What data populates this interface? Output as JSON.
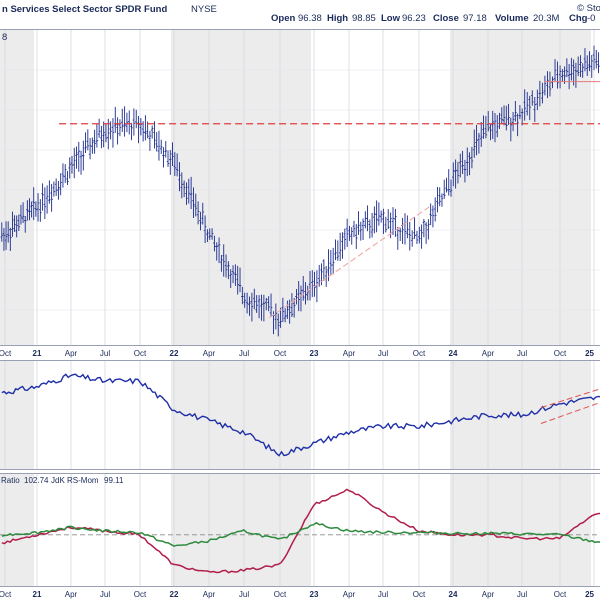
{
  "header": {
    "title": "n Services Select Sector SPDR Fund",
    "exchange": "NYSE",
    "open_label": "Open",
    "open": "96.38",
    "high_label": "High",
    "high": "98.85",
    "low_label": "Low",
    "low": "96.23",
    "close_label": "Close",
    "close": "97.18",
    "volume_label": "Volume",
    "volume": "20.3M",
    "chg_label": "Chg",
    "chg": "-0",
    "watermark": "© Sto",
    "corner_value": "8"
  },
  "indicator_legend": {
    "ratio_label": "Ratio",
    "ratio_value": "102.74",
    "mom_label": "JdK RS-Mom",
    "mom_value": "99.11"
  },
  "colors": {
    "price_bars": "#1a2a8c",
    "resistance_line": "#e03c3c",
    "support_trend": "#f2a8a8",
    "rs_line": "#1f2fa8",
    "rs_ratio": "#b01e4a",
    "rs_momentum": "#2e8b3e",
    "shading": "#ececec"
  },
  "x_axis": {
    "labels": [
      {
        "text": "Oct",
        "bold": false
      },
      {
        "text": "21",
        "bold": true
      },
      {
        "text": "Apr",
        "bold": false
      },
      {
        "text": "Jul",
        "bold": false
      },
      {
        "text": "Oct",
        "bold": false
      },
      {
        "text": "22",
        "bold": true
      },
      {
        "text": "Apr",
        "bold": false
      },
      {
        "text": "Jul",
        "bold": false
      },
      {
        "text": "Oct",
        "bold": false
      },
      {
        "text": "23",
        "bold": true
      },
      {
        "text": "Apr",
        "bold": false
      },
      {
        "text": "Jul",
        "bold": false
      },
      {
        "text": "Oct",
        "bold": false
      },
      {
        "text": "24",
        "bold": true
      },
      {
        "text": "Apr",
        "bold": false
      },
      {
        "text": "Jul",
        "bold": false
      },
      {
        "text": "Oct",
        "bold": false
      },
      {
        "text": "25",
        "bold": true
      }
    ]
  },
  "chart_data": {
    "type": "line",
    "time_axis": [
      "2020-10",
      "2021-01",
      "2021-04",
      "2021-07",
      "2021-10",
      "2022-01",
      "2022-04",
      "2022-07",
      "2022-10",
      "2023-01",
      "2023-04",
      "2023-07",
      "2023-10",
      "2024-01",
      "2024-04",
      "2024-07",
      "2024-10",
      "2025-01"
    ],
    "price_panel": {
      "chart_type": "bar",
      "series": [
        {
          "name": "",
          "values": [
            64,
            69,
            76,
            83,
            84,
            77,
            64,
            53,
            49,
            55,
            64,
            67,
            63,
            74,
            83,
            86,
            93,
            95
          ]
        }
      ],
      "resistance_level": 84,
      "annotations": [
        "resistance line",
        "rising trend line",
        "recent support line"
      ]
    },
    "rs_line_panel": {
      "series": [
        {
          "name": "",
          "values": [
            100,
            101,
            103,
            102,
            102,
            97,
            95,
            93,
            89,
            91,
            93,
            94,
            94,
            95,
            96,
            96,
            98,
            99
          ]
        }
      ],
      "annotations": [
        "rising channel lines"
      ]
    },
    "rrg_panel": {
      "series": [
        {
          "name": "Ratio",
          "last": 102.74,
          "values": [
            99,
            100,
            101,
            100.5,
            100,
            96,
            95,
            95.3,
            96,
            104,
            106,
            103,
            100.5,
            100,
            100,
            99.5,
            99.5,
            102.7
          ]
        },
        {
          "name": "JdK RS-Mom",
          "last": 99.11,
          "values": [
            100,
            100.3,
            101,
            100.5,
            100.3,
            98.5,
            99.2,
            100.5,
            99.3,
            101.5,
            100.5,
            100.3,
            100.3,
            100.2,
            100.2,
            100.1,
            100,
            99.1
          ]
        }
      ],
      "reference_level": 100
    }
  }
}
